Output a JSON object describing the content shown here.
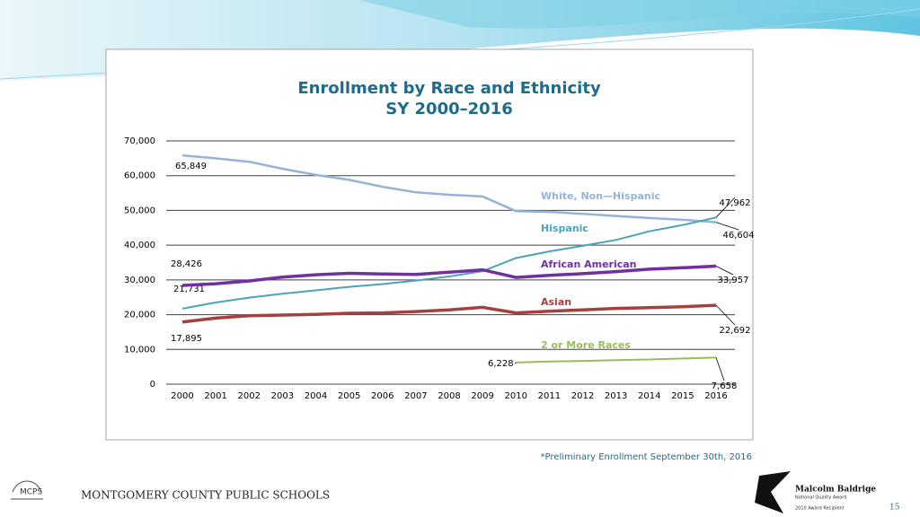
{
  "chart_data": {
    "type": "line",
    "title": "Enrollment by Race and Ethnicity",
    "subtitle": "SY 2000–2016",
    "categories": [
      "2000",
      "2001",
      "2002",
      "2003",
      "2004",
      "2005",
      "2006",
      "2007",
      "2008",
      "2009",
      "2010",
      "2011",
      "2012",
      "2013",
      "2014",
      "2015",
      "2016"
    ],
    "ylim": [
      0,
      70000
    ],
    "yticks": [
      0,
      {
        "value": 10000,
        "label": "10,000"
      },
      {
        "value": 20000,
        "label": "20,000"
      },
      {
        "value": 30000,
        "label": "30,000"
      },
      {
        "value": 40000,
        "label": "40,000"
      },
      {
        "value": 50000,
        "label": "50,000"
      },
      {
        "value": 60000,
        "label": "60,000"
      },
      {
        "value": 70000,
        "label": "70,000"
      }
    ],
    "grid": true,
    "series": [
      {
        "name": "White, Non—Hispanic",
        "color": "#95b3d7",
        "values": [
          65849,
          65000,
          64000,
          62000,
          60200,
          58800,
          56800,
          55200,
          54500,
          54000,
          49800,
          49600,
          49000,
          48400,
          47800,
          47300,
          46604
        ],
        "value_labels": [
          "65,849",
          null,
          null,
          null,
          null,
          null,
          null,
          null,
          null,
          null,
          null,
          null,
          null,
          null,
          null,
          null,
          "46,604"
        ]
      },
      {
        "name": "Hispanic",
        "color": "#4aa3b8",
        "values": [
          21731,
          23500,
          24900,
          26000,
          27000,
          28000,
          28800,
          29800,
          31000,
          32500,
          36300,
          38200,
          39800,
          41500,
          44000,
          45800,
          47962
        ],
        "value_labels": [
          "21,731",
          null,
          null,
          null,
          null,
          null,
          null,
          null,
          null,
          null,
          null,
          null,
          null,
          null,
          null,
          null,
          "47,962"
        ]
      },
      {
        "name": "African American",
        "color": "#7030a0",
        "values": [
          28426,
          28900,
          29700,
          30800,
          31500,
          31900,
          31700,
          31600,
          32200,
          32900,
          30700,
          31300,
          31800,
          32400,
          33100,
          33500,
          33957
        ],
        "value_labels": [
          "28,426",
          null,
          null,
          null,
          null,
          null,
          null,
          null,
          null,
          null,
          null,
          null,
          null,
          null,
          null,
          null,
          "33,957"
        ]
      },
      {
        "name": "Asian",
        "color": "#a6403f",
        "values": [
          17895,
          19000,
          19700,
          19900,
          20100,
          20400,
          20500,
          20900,
          21400,
          22100,
          20500,
          21000,
          21400,
          21800,
          22000,
          22300,
          22692
        ],
        "value_labels": [
          "17,895",
          null,
          null,
          null,
          null,
          null,
          null,
          null,
          null,
          null,
          null,
          null,
          null,
          null,
          null,
          null,
          "22,692"
        ]
      },
      {
        "name": "2 or More Races",
        "color": "#9bbb59",
        "values": [
          null,
          null,
          null,
          null,
          null,
          null,
          null,
          null,
          null,
          null,
          6228,
          6500,
          6700,
          6900,
          7100,
          7400,
          7658
        ],
        "value_labels": [
          null,
          null,
          null,
          null,
          null,
          null,
          null,
          null,
          null,
          null,
          "6,228",
          null,
          null,
          null,
          null,
          null,
          "7,658"
        ]
      }
    ]
  },
  "footnote": "*Preliminary Enrollment September 30th, 2016",
  "footer": {
    "logo": "MCPS",
    "organization": "MONTGOMERY COUNTY PUBLIC SCHOOLS",
    "award_name": "Malcolm Baldrige",
    "award_subtitle": "National Quality Award",
    "award_note": "2010 Award Recipient"
  },
  "page_number": "15"
}
